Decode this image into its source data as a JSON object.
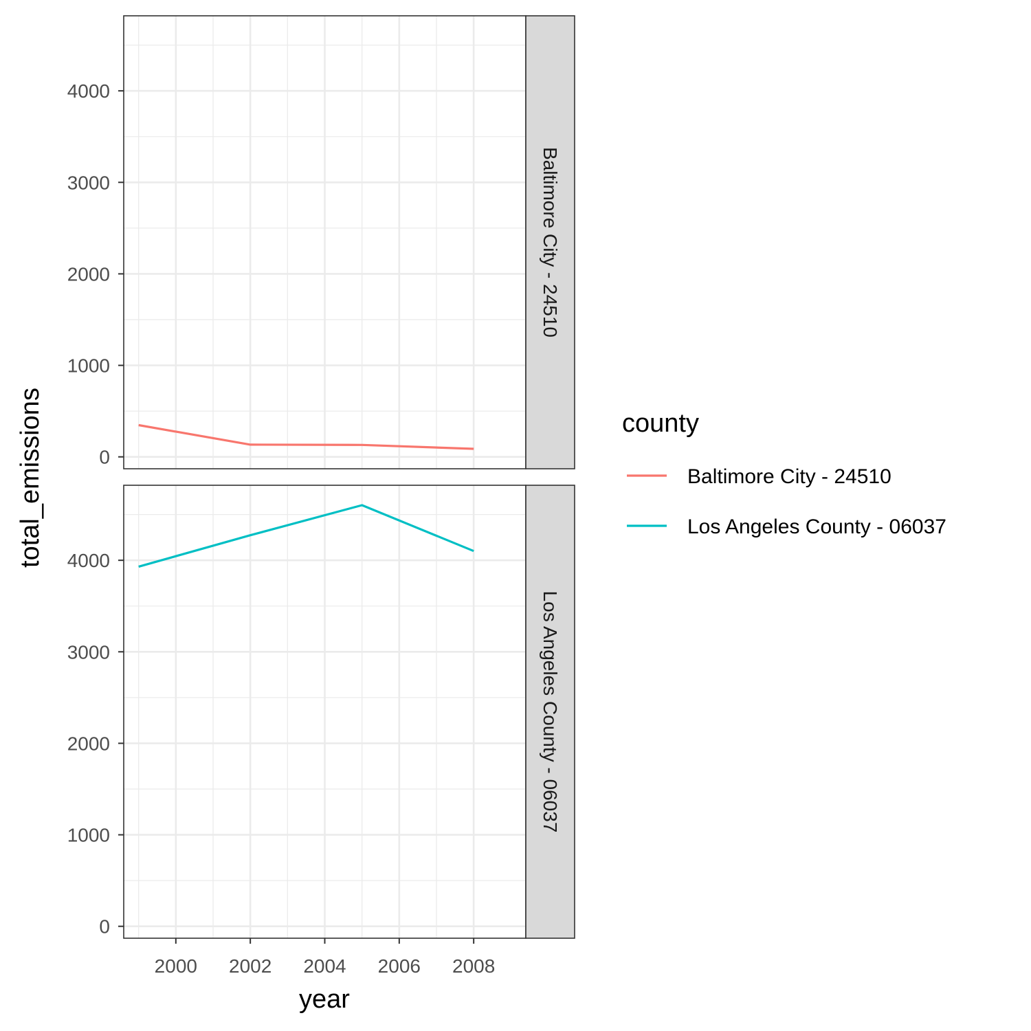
{
  "chart_data": {
    "type": "line",
    "facet_by": "county",
    "xlabel": "year",
    "ylabel": "total_emissions",
    "x_ticks": [
      2000,
      2002,
      2004,
      2006,
      2008
    ],
    "y_ticks": [
      0,
      1000,
      2000,
      3000,
      4000
    ],
    "xlim": [
      1998.6,
      2009.4
    ],
    "ylim": [
      -130,
      4820
    ],
    "grid": true,
    "legend": {
      "title": "county",
      "position": "right"
    },
    "series": [
      {
        "name": "Baltimore City - 24510",
        "color": "#F8766D",
        "x": [
          1999,
          2002,
          2005,
          2008
        ],
        "values": [
          347,
          134,
          131,
          88
        ]
      },
      {
        "name": "Los Angeles County - 06037",
        "color": "#00BFC4",
        "x": [
          1999,
          2002,
          2005,
          2008
        ],
        "values": [
          3931,
          4274,
          4602,
          4101
        ]
      }
    ]
  }
}
